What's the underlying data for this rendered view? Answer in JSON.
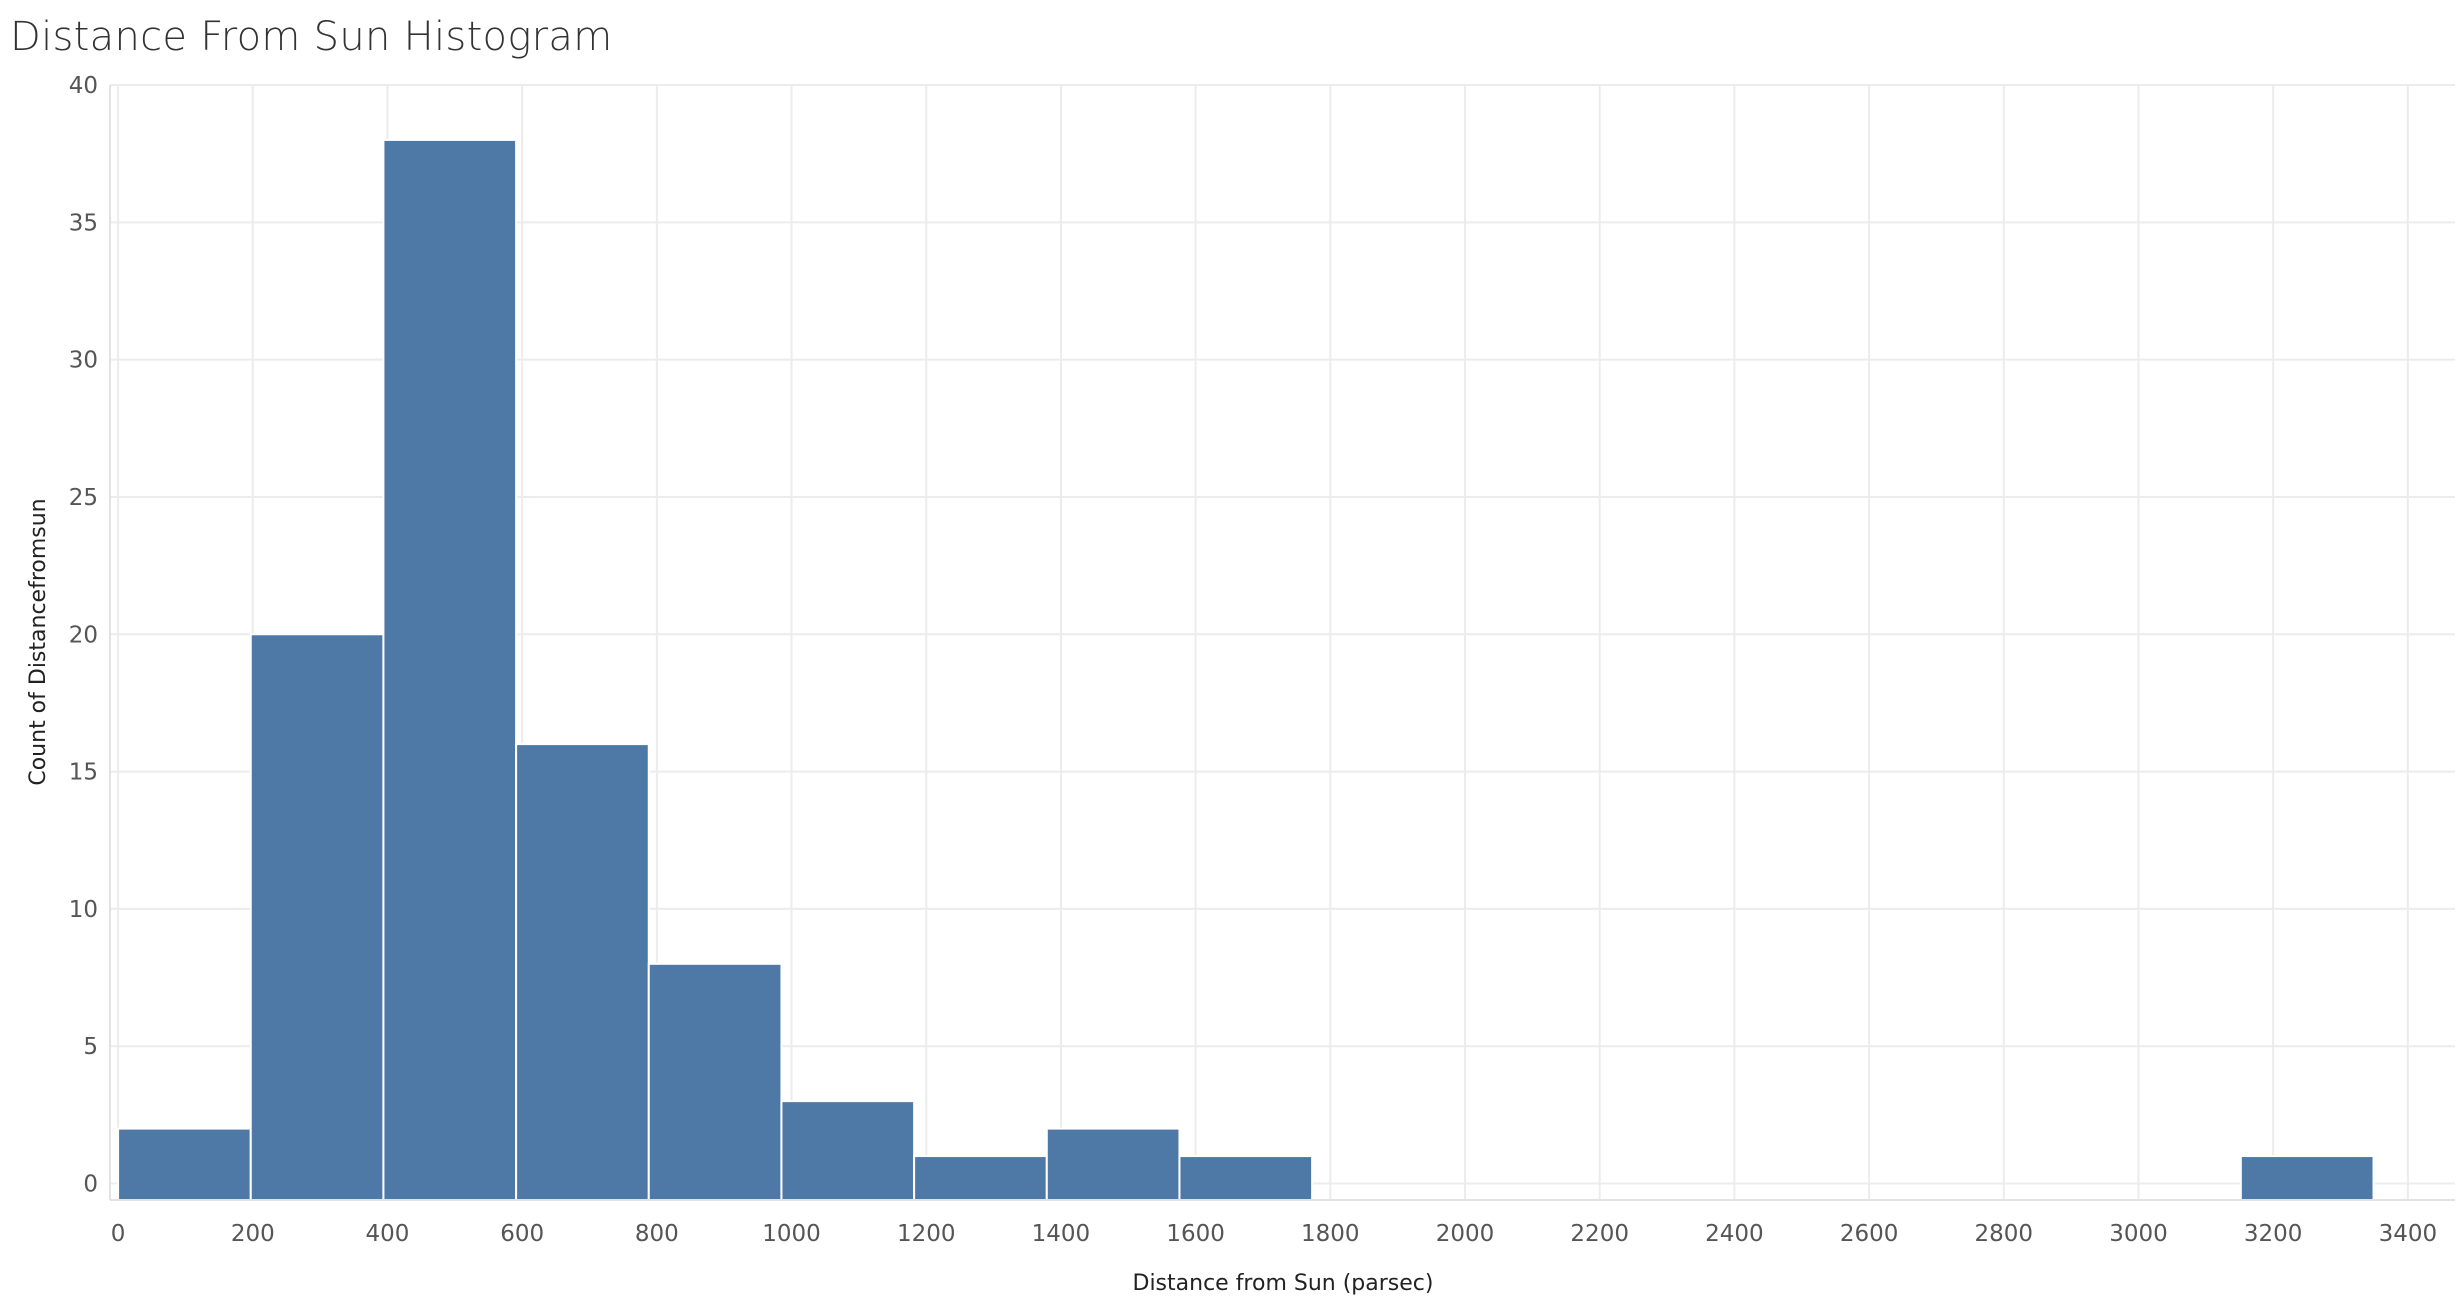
{
  "title": "Distance From Sun Histogram",
  "colors": {
    "bar": "#4e79a7",
    "grid": "#ececec",
    "text": "#555555"
  },
  "chart_data": {
    "type": "bar",
    "title": "Distance From Sun Histogram",
    "xlabel": "Distance from Sun (parsec)",
    "ylabel": "Count of Distancefromsun",
    "bin_width": 197,
    "bins": [
      {
        "start": 0,
        "count": 2
      },
      {
        "start": 197,
        "count": 20
      },
      {
        "start": 394,
        "count": 38
      },
      {
        "start": 591,
        "count": 16
      },
      {
        "start": 788,
        "count": 8
      },
      {
        "start": 985,
        "count": 3
      },
      {
        "start": 1182,
        "count": 1
      },
      {
        "start": 1379,
        "count": 2
      },
      {
        "start": 1576,
        "count": 1
      },
      {
        "start": 3152,
        "count": 1
      }
    ],
    "xlim": [
      -12,
      3470
    ],
    "ylim": [
      -0.6,
      40
    ],
    "x_ticks": [
      0,
      200,
      400,
      600,
      800,
      1000,
      1200,
      1400,
      1600,
      1800,
      2000,
      2200,
      2400,
      2600,
      2800,
      3000,
      3200,
      3400
    ],
    "y_ticks": [
      0,
      5,
      10,
      15,
      20,
      25,
      30,
      35,
      40
    ],
    "grid": true
  }
}
